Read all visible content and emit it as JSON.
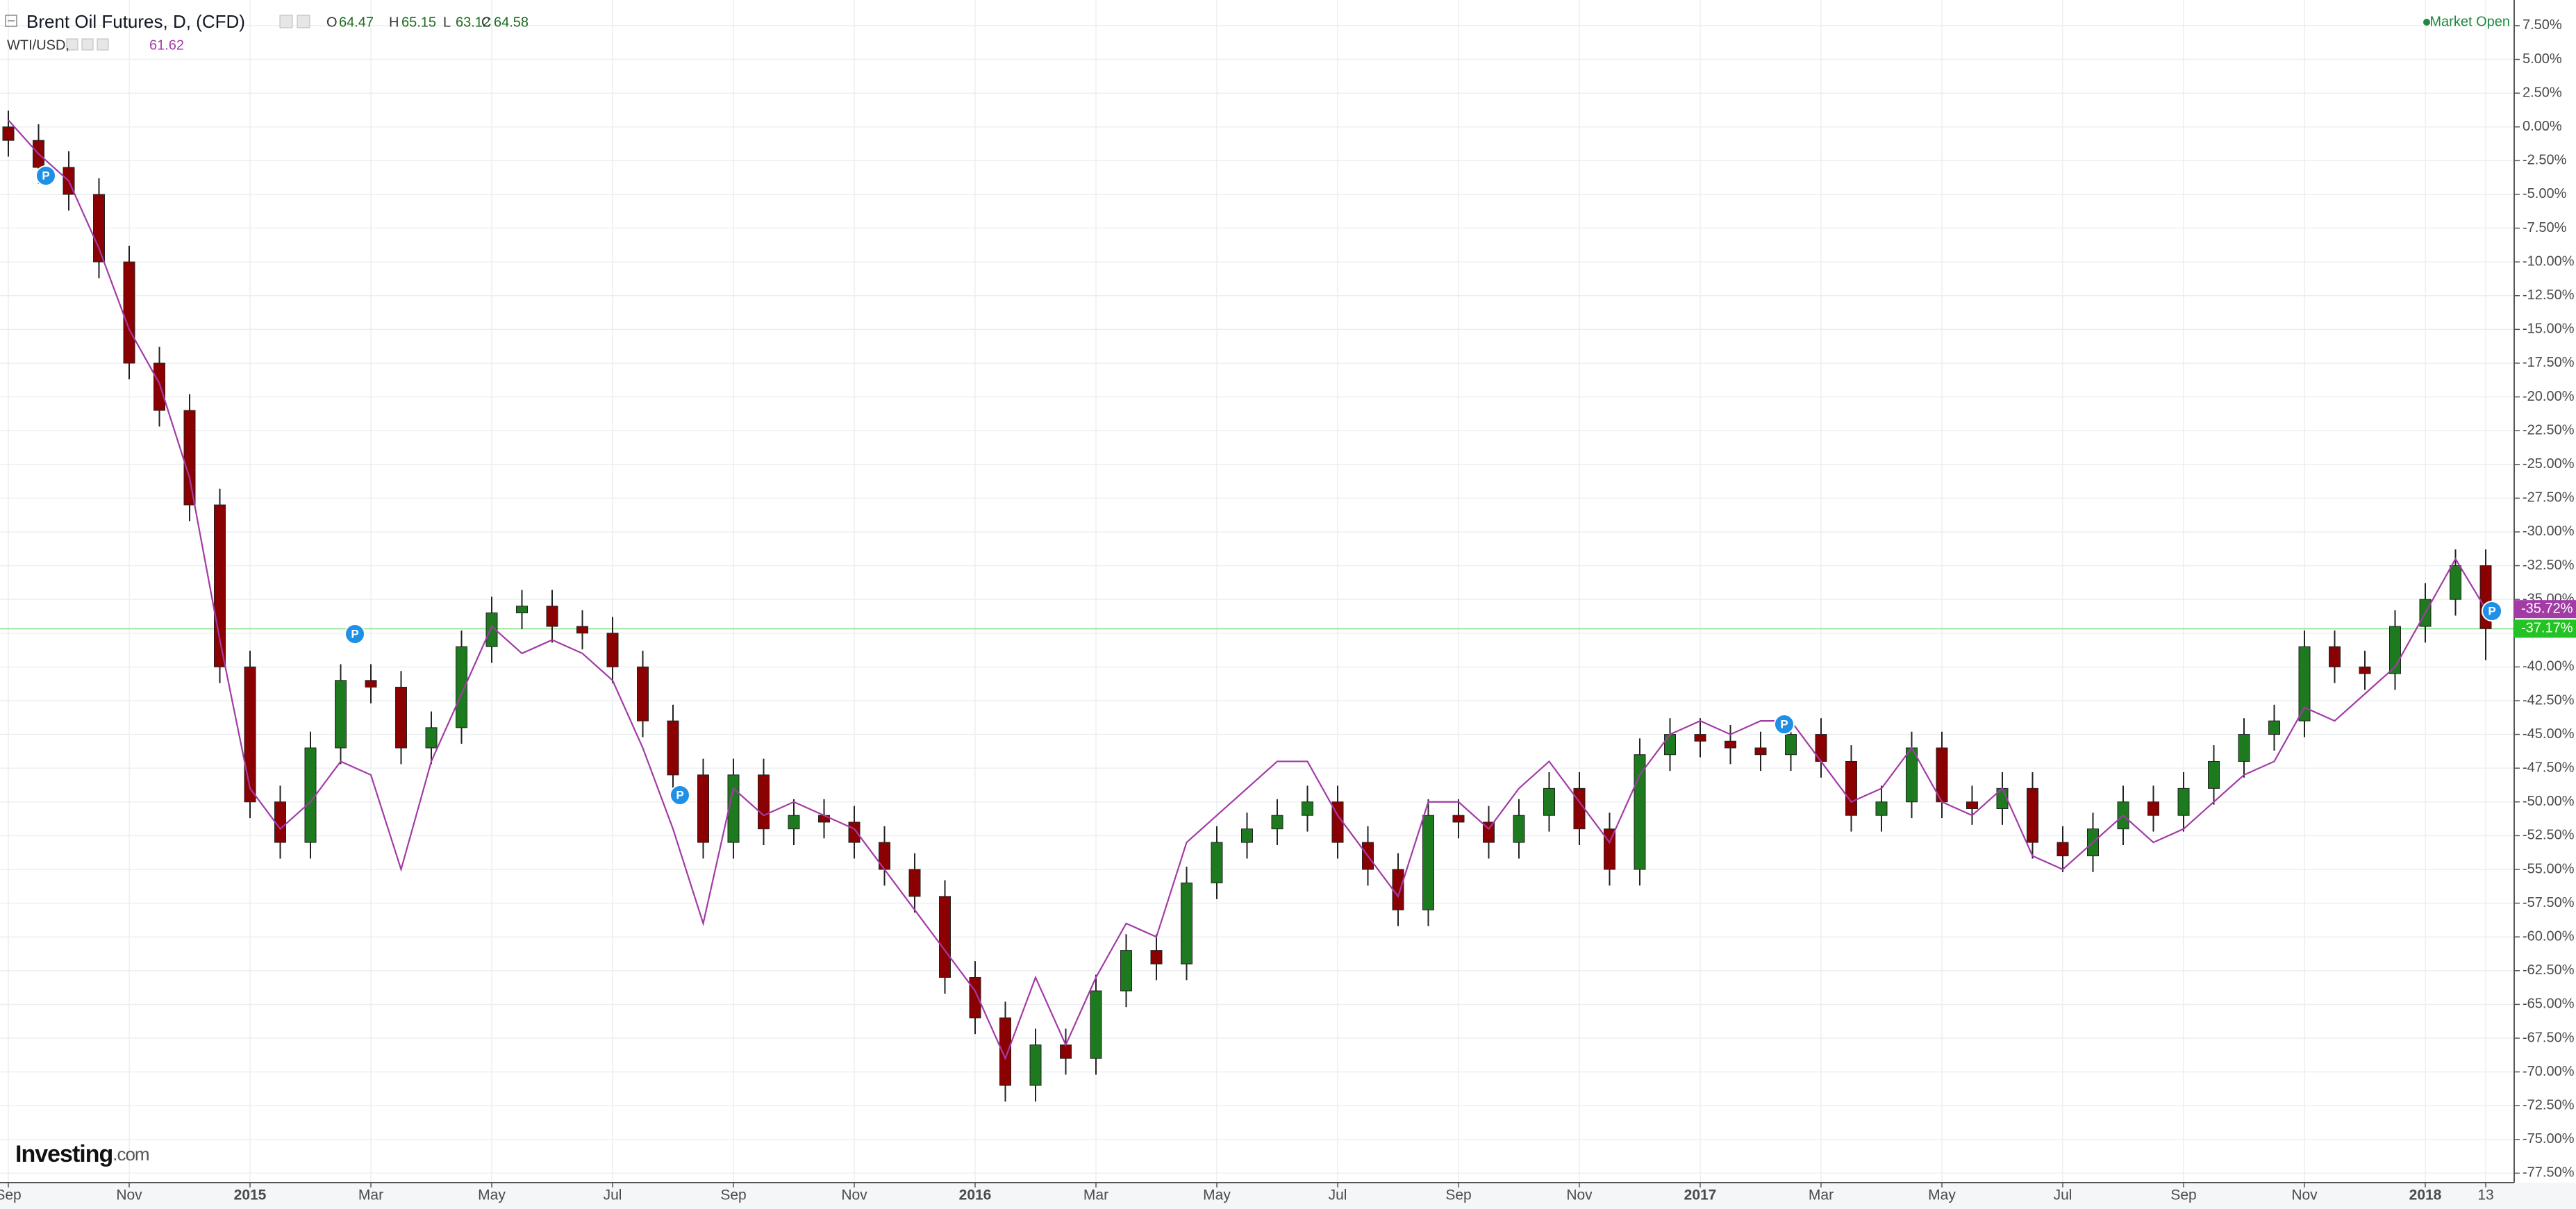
{
  "chart_data": {
    "type": "candlestick",
    "title": "Brent Oil Futures, D, (CFD)",
    "ohlc_header": [
      {
        "label": "O",
        "value": 64.47
      },
      {
        "label": "H",
        "value": 65.15
      },
      {
        "label": "L",
        "value": 63.12
      },
      {
        "label": "C",
        "value": 64.58
      }
    ],
    "status": "Market Open",
    "logo": {
      "name": "Investing",
      "suffix": ".com"
    },
    "annotation_label": "P",
    "categories": [
      "Sep",
      null,
      null,
      null,
      "Nov",
      null,
      null,
      null,
      "2015",
      null,
      null,
      null,
      "Mar",
      null,
      null,
      null,
      "May",
      null,
      null,
      null,
      "Jul",
      null,
      null,
      null,
      "Sep",
      null,
      null,
      null,
      "Nov",
      null,
      null,
      null,
      "2016",
      null,
      null,
      null,
      "Mar",
      null,
      null,
      null,
      "May",
      null,
      null,
      null,
      "Jul",
      null,
      null,
      null,
      "Sep",
      null,
      null,
      null,
      "Nov",
      null,
      null,
      null,
      "2017",
      null,
      null,
      null,
      "Mar",
      null,
      null,
      null,
      "May",
      null,
      null,
      null,
      "Jul",
      null,
      null,
      null,
      "Sep",
      null,
      null,
      null,
      "Nov",
      null,
      null,
      null,
      "2018",
      null,
      "13"
    ],
    "series": [
      {
        "name": "Brent Oil Futures, D, (CFD)",
        "kind": "candlestick",
        "up_color": "#1e7a1e",
        "down_color": "#8b0000",
        "last_color": "#22c322",
        "last_value_label": "-37.17%",
        "open": [
          0.0,
          -1.0,
          -3.0,
          -5.0,
          -10.0,
          -17.5,
          -21.0,
          -28.0,
          -40.0,
          -50.0,
          -53.0,
          -46.0,
          -41.0,
          -41.5,
          -46.0,
          -44.5,
          -38.5,
          -36.0,
          -35.5,
          -37.0,
          -37.5,
          -40.0,
          -44.0,
          -48.0,
          -53.0,
          -48.0,
          -52.0,
          -51.0,
          -51.5,
          -53.0,
          -55.0,
          -57.0,
          -63.0,
          -66.0,
          -71.0,
          -68.0,
          -69.0,
          -64.0,
          -61.0,
          -62.0,
          -56.0,
          -53.0,
          -52.0,
          -51.0,
          -50.0,
          -53.0,
          -55.0,
          -58.0,
          -51.0,
          -51.5,
          -53.0,
          -51.0,
          -49.0,
          -52.0,
          -55.0,
          -46.5,
          -45.0,
          -45.5,
          -46.0,
          -46.5,
          -45.0,
          -47.0,
          -51.0,
          -50.0,
          -46.0,
          -50.0,
          -50.5,
          -49.0,
          -53.0,
          -54.0,
          -52.0,
          -50.0,
          -51.0,
          -49.0,
          -47.0,
          -45.0,
          -44.0,
          -38.5,
          -40.0,
          -40.5,
          -37.0,
          -35.0,
          -32.5
        ],
        "high": [
          1.2,
          0.2,
          -1.8,
          -3.8,
          -8.8,
          -16.3,
          -19.8,
          -26.8,
          -38.8,
          -48.8,
          -44.8,
          -39.8,
          -39.8,
          -40.3,
          -43.3,
          -37.3,
          -34.8,
          -34.3,
          -34.3,
          -35.8,
          -36.3,
          -38.8,
          -42.8,
          -46.8,
          -46.8,
          -46.8,
          -49.8,
          -49.8,
          -50.3,
          -51.8,
          -53.8,
          -55.8,
          -61.8,
          -64.8,
          -66.8,
          -66.8,
          -62.8,
          -59.8,
          -59.8,
          -54.8,
          -51.8,
          -50.8,
          -49.8,
          -48.8,
          -48.8,
          -51.8,
          -53.8,
          -49.8,
          -49.8,
          -50.3,
          -49.8,
          -47.8,
          -47.8,
          -50.8,
          -45.3,
          -43.8,
          -43.8,
          -44.3,
          -44.8,
          -43.8,
          -43.8,
          -45.8,
          -48.8,
          -44.8,
          -44.8,
          -48.8,
          -47.8,
          -47.8,
          -51.8,
          -50.8,
          -48.8,
          -48.8,
          -47.8,
          -45.8,
          -43.8,
          -42.8,
          -37.3,
          -37.3,
          -38.8,
          -35.8,
          -33.8,
          -31.3,
          -31.3
        ],
        "low": [
          -2.2,
          -4.2,
          -6.2,
          -11.2,
          -18.7,
          -22.2,
          -29.2,
          -41.2,
          -51.2,
          -54.2,
          -54.2,
          -47.2,
          -42.7,
          -47.2,
          -47.2,
          -45.7,
          -39.7,
          -37.2,
          -38.2,
          -38.7,
          -41.2,
          -45.2,
          -49.2,
          -54.2,
          -54.2,
          -53.2,
          -53.2,
          -52.7,
          -54.2,
          -56.2,
          -58.2,
          -64.2,
          -67.2,
          -72.2,
          -72.2,
          -70.2,
          -70.2,
          -65.2,
          -63.2,
          -63.2,
          -57.2,
          -54.2,
          -53.2,
          -52.2,
          -54.2,
          -56.2,
          -59.2,
          -59.2,
          -52.7,
          -54.2,
          -54.2,
          -52.2,
          -53.2,
          -56.2,
          -56.2,
          -47.7,
          -46.7,
          -47.2,
          -47.7,
          -47.7,
          -48.2,
          -52.2,
          -52.2,
          -51.2,
          -51.2,
          -51.7,
          -51.7,
          -54.2,
          -55.2,
          -55.2,
          -53.2,
          -52.2,
          -52.2,
          -50.2,
          -48.2,
          -46.2,
          -45.2,
          -41.2,
          -41.7,
          -41.7,
          -38.2,
          -36.2,
          -39.5
        ],
        "close": [
          -1.0,
          -3.0,
          -5.0,
          -10.0,
          -17.5,
          -21.0,
          -28.0,
          -40.0,
          -50.0,
          -53.0,
          -46.0,
          -41.0,
          -41.5,
          -46.0,
          -44.5,
          -38.5,
          -36.0,
          -35.5,
          -37.0,
          -37.5,
          -40.0,
          -44.0,
          -48.0,
          -53.0,
          -48.0,
          -52.0,
          -51.0,
          -51.5,
          -53.0,
          -55.0,
          -57.0,
          -63.0,
          -66.0,
          -71.0,
          -68.0,
          -69.0,
          -64.0,
          -61.0,
          -62.0,
          -56.0,
          -53.0,
          -52.0,
          -51.0,
          -50.0,
          -53.0,
          -55.0,
          -58.0,
          -51.0,
          -51.5,
          -53.0,
          -51.0,
          -49.0,
          -52.0,
          -55.0,
          -46.5,
          -45.0,
          -45.5,
          -46.0,
          -46.5,
          -45.0,
          -47.0,
          -51.0,
          -50.0,
          -46.0,
          -50.0,
          -50.5,
          -49.0,
          -53.0,
          -54.0,
          -52.0,
          -50.0,
          -51.0,
          -49.0,
          -47.0,
          -45.0,
          -44.0,
          -38.5,
          -40.0,
          -40.5,
          -37.0,
          -35.0,
          -32.5,
          -37.17
        ]
      },
      {
        "name": "WTI/USD,",
        "kind": "line",
        "color": "#a23ba6",
        "price": 61.62,
        "last_value_label": "-35.72%",
        "values": [
          0.5,
          -2,
          -4,
          -9,
          -15,
          -19,
          -26,
          -38,
          -49,
          -52,
          -50,
          -47,
          -48,
          -55,
          -47,
          -42,
          -37,
          -39,
          -38,
          -39,
          -41,
          -46,
          -52,
          -59,
          -49,
          -51,
          -50,
          -51,
          -52,
          -55,
          -58,
          -61,
          -64,
          -69,
          -63,
          -68,
          -63,
          -59,
          -60,
          -53,
          -51,
          -49,
          -47,
          -47,
          -51,
          -54,
          -57,
          -50,
          -50,
          -52,
          -49,
          -47,
          -50,
          -53,
          -48,
          -45,
          -44,
          -45,
          -44,
          -44,
          -47,
          -50,
          -49,
          -46,
          -50,
          -51,
          -49,
          -54,
          -55,
          -53,
          -51,
          -53,
          -52,
          -50,
          -48,
          -47,
          -43,
          -44,
          -42,
          -40,
          -36,
          -32,
          -35.72
        ]
      }
    ],
    "ylim": [
      -78.2,
      9.4
    ],
    "yticks": [
      {
        "value": 7.5,
        "label": "7.50%"
      },
      {
        "value": 5,
        "label": "5.00%"
      },
      {
        "value": 2.5,
        "label": "2.50%"
      },
      {
        "value": 0,
        "label": "0.00%"
      },
      {
        "value": -2.5,
        "label": "-2.50%"
      },
      {
        "value": -5,
        "label": "-5.00%"
      },
      {
        "value": -7.5,
        "label": "-7.50%"
      },
      {
        "value": -10,
        "label": "-10.00%"
      },
      {
        "value": -12.5,
        "label": "-12.50%"
      },
      {
        "value": -15,
        "label": "-15.00%"
      },
      {
        "value": -17.5,
        "label": "-17.50%"
      },
      {
        "value": -20,
        "label": "-20.00%"
      },
      {
        "value": -22.5,
        "label": "-22.50%"
      },
      {
        "value": -25,
        "label": "-25.00%"
      },
      {
        "value": -27.5,
        "label": "-27.50%"
      },
      {
        "value": -30,
        "label": "-30.00%"
      },
      {
        "value": -32.5,
        "label": "-32.50%"
      },
      {
        "value": -35,
        "label": "-35.00%"
      },
      {
        "value": -37.5,
        "label": "-37.50%"
      },
      {
        "value": -40,
        "label": "-40.00%"
      },
      {
        "value": -42.5,
        "label": "-42.50%"
      },
      {
        "value": -45,
        "label": "-45.00%"
      },
      {
        "value": -47.5,
        "label": "-47.50%"
      },
      {
        "value": -50,
        "label": "-50.00%"
      },
      {
        "value": -52.5,
        "label": "-52.50%"
      },
      {
        "value": -55,
        "label": "-55.00%"
      },
      {
        "value": -57.5,
        "label": "-57.50%"
      },
      {
        "value": -60,
        "label": "-60.00%"
      },
      {
        "value": -62.5,
        "label": "-62.50%"
      },
      {
        "value": -65,
        "label": "-65.00%"
      },
      {
        "value": -67.5,
        "label": "-67.50%"
      },
      {
        "value": -70,
        "label": "-70.00%"
      },
      {
        "value": -72.5,
        "label": "-72.50%"
      },
      {
        "value": -75,
        "label": "-75.00%"
      },
      {
        "value": -77.5,
        "label": "-77.50%"
      }
    ],
    "grid": true
  }
}
